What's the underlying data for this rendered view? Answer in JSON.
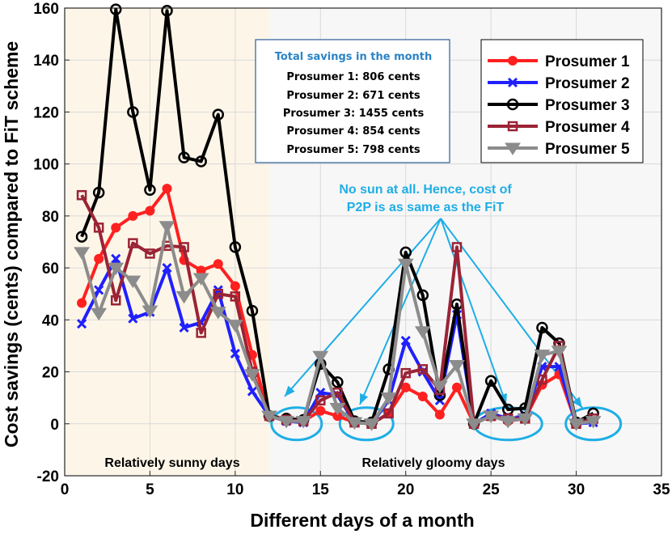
{
  "chart_data": {
    "type": "line",
    "xlabel": "Different days of a month",
    "ylabel": "Cost savings (cents) compared to FiT scheme",
    "xlim": [
      0,
      35
    ],
    "ylim": [
      -20,
      160
    ],
    "xticks": [
      "0",
      "5",
      "10",
      "15",
      "20",
      "25",
      "30",
      "35"
    ],
    "yticks": [
      "-20",
      "0",
      "20",
      "40",
      "60",
      "80",
      "100",
      "120",
      "140",
      "160"
    ],
    "grid": true,
    "legend_position": "top-right",
    "regions": [
      {
        "label": "Relatively sunny days",
        "x_range": [
          0,
          12
        ],
        "color": "#fdf6e8"
      },
      {
        "label": "Relatively gloomy days",
        "x_range": [
          12,
          35
        ],
        "color": "#f7f7f7"
      }
    ],
    "infobox": {
      "title": "Total savings in the month",
      "lines": [
        "Prosumer 1: 806 cents",
        "Prosumer 2: 671 cents",
        "Prosumer 3: 1455 cents",
        "Prosumer 4: 854 cents",
        "Prosumer 5: 798 cents"
      ]
    },
    "annotation": {
      "lines": [
        "No sun at all. Hence, cost of",
        "P2P is as same as the FiT"
      ],
      "targets": [
        [
          13.6,
          0
        ],
        [
          17.7,
          0
        ],
        [
          26,
          0
        ],
        [
          31,
          0
        ]
      ]
    },
    "x": [
      1,
      2,
      3,
      4,
      5,
      6,
      7,
      8,
      9,
      10,
      11,
      12,
      13,
      14,
      15,
      16,
      17,
      18,
      19,
      20,
      21,
      22,
      23,
      24,
      25,
      26,
      27,
      28,
      29,
      30,
      31
    ],
    "series": [
      {
        "name": "Prosumer 1",
        "color": "#ff2020",
        "marker": "circle-filled",
        "values": [
          46.5,
          63.5,
          75.5,
          80,
          82,
          90.5,
          63,
          59,
          61.5,
          53,
          26.5,
          3,
          1,
          1,
          5,
          3,
          0.5,
          0,
          4,
          14,
          10.5,
          3.5,
          14,
          0,
          3,
          1,
          2,
          15,
          19,
          0,
          1
        ]
      },
      {
        "name": "Prosumer 2",
        "color": "#2020ff",
        "marker": "x",
        "values": [
          38.5,
          51.5,
          63.5,
          40.5,
          43,
          60,
          37,
          39,
          51.5,
          27,
          12.5,
          3,
          1,
          0.5,
          12,
          11,
          0.5,
          0,
          9,
          32,
          20,
          9,
          42,
          0,
          4,
          2,
          3,
          22,
          22,
          0,
          0.5
        ]
      },
      {
        "name": "Prosumer 3",
        "color": "#000000",
        "marker": "circle-open",
        "values": [
          72,
          89,
          159.5,
          120,
          90,
          159,
          102.5,
          101,
          119,
          68,
          43.5,
          3,
          2,
          1.5,
          23,
          16,
          1,
          0.5,
          21,
          66,
          49.5,
          11,
          46,
          0,
          16.5,
          5.5,
          6,
          37,
          31,
          0.5,
          4
        ]
      },
      {
        "name": "Prosumer 4",
        "color": "#9b2335",
        "marker": "square-open",
        "values": [
          88,
          75.5,
          47.5,
          69.5,
          65.5,
          68.5,
          68,
          35,
          50,
          49,
          20,
          3,
          1.5,
          1,
          9,
          12,
          0.5,
          0,
          4,
          19.5,
          21,
          13,
          68,
          0,
          3,
          2,
          2,
          17,
          30,
          0,
          2
        ]
      },
      {
        "name": "Prosumer 5",
        "color": "#8c8c8c",
        "marker": "triangle-down",
        "values": [
          66,
          42.5,
          60,
          55,
          43.5,
          76,
          49,
          56,
          43,
          38,
          19,
          3,
          1,
          1,
          26,
          6,
          0.5,
          0,
          10,
          61.5,
          35.5,
          14.5,
          22.5,
          0,
          3,
          1,
          2,
          26.5,
          28,
          0,
          1
        ]
      }
    ]
  }
}
